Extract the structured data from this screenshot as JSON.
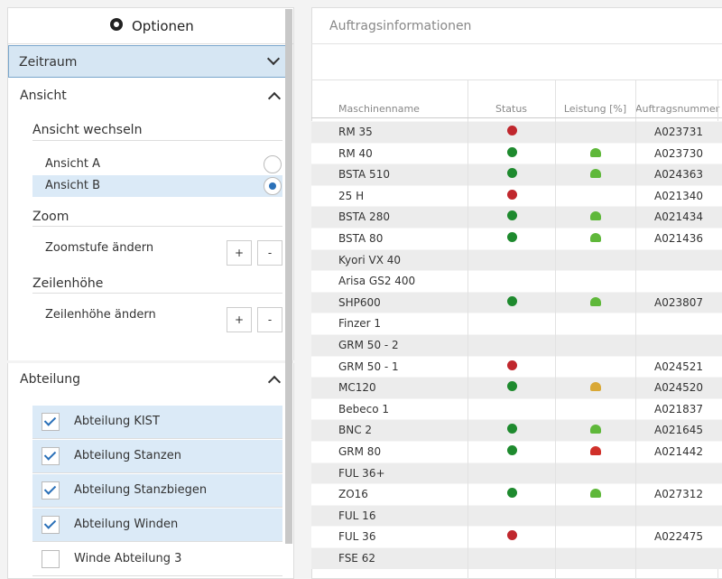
{
  "sidebar": {
    "title": "Optionen",
    "period": "Zeitraum",
    "view": {
      "title": "Ansicht",
      "switch": "Ansicht wechseln",
      "options": [
        "Ansicht A",
        "Ansicht B"
      ],
      "selected": 1,
      "zoom": "Zoom",
      "zoom_label": "Zoomstufe ändern",
      "row_height": "Zeilenhöhe",
      "row_height_label": "Zeilenhöhe ändern",
      "plus": "+",
      "minus": "-"
    },
    "department": {
      "title": "Abteilung",
      "items": [
        {
          "label": "Abteilung KIST",
          "checked": true
        },
        {
          "label": "Abteilung Stanzen",
          "checked": true
        },
        {
          "label": "Abteilung Stanzbiegen",
          "checked": true
        },
        {
          "label": "Abteilung Winden",
          "checked": true
        },
        {
          "label": "Winde Abteilung 3",
          "checked": false
        }
      ]
    }
  },
  "main": {
    "title": "Auftragsinformationen",
    "columns": [
      "Maschinenname",
      "Status",
      "Leistung [%]",
      "Auftragsnummer"
    ],
    "rows": [
      [
        "RM 35",
        "red",
        null,
        "A023731"
      ],
      [
        "RM 40",
        "green",
        "green",
        "A023730"
      ],
      [
        "BSTA 510",
        "green",
        "green",
        "A024363"
      ],
      [
        "25 H",
        "red",
        null,
        "A021340"
      ],
      [
        "BSTA 280",
        "green",
        "green",
        "A021434"
      ],
      [
        "BSTA 80",
        "green",
        "green",
        "A021436"
      ],
      [
        "Kyori VX 40",
        null,
        null,
        null
      ],
      [
        "Arisa GS2 400",
        null,
        null,
        null
      ],
      [
        "SHP600",
        "green",
        "green",
        "A023807"
      ],
      [
        "Finzer 1",
        null,
        null,
        null
      ],
      [
        "GRM 50 - 2",
        null,
        null,
        null
      ],
      [
        "GRM 50 - 1",
        "red",
        null,
        "A024521"
      ],
      [
        "MC120",
        "green",
        "orange",
        "A024520"
      ],
      [
        "Bebeco 1",
        null,
        null,
        "A021837"
      ],
      [
        "BNC 2",
        "green",
        "green",
        "A021645"
      ],
      [
        "GRM 80",
        "green",
        "red",
        "A021442"
      ],
      [
        "FUL 36+",
        null,
        null,
        null
      ],
      [
        "ZO16",
        "green",
        "green",
        "A027312"
      ],
      [
        "FUL 16",
        null,
        null,
        null
      ],
      [
        "FUL 36",
        "red",
        null,
        "A022475"
      ],
      [
        "FSE 62",
        null,
        null,
        null
      ]
    ]
  }
}
